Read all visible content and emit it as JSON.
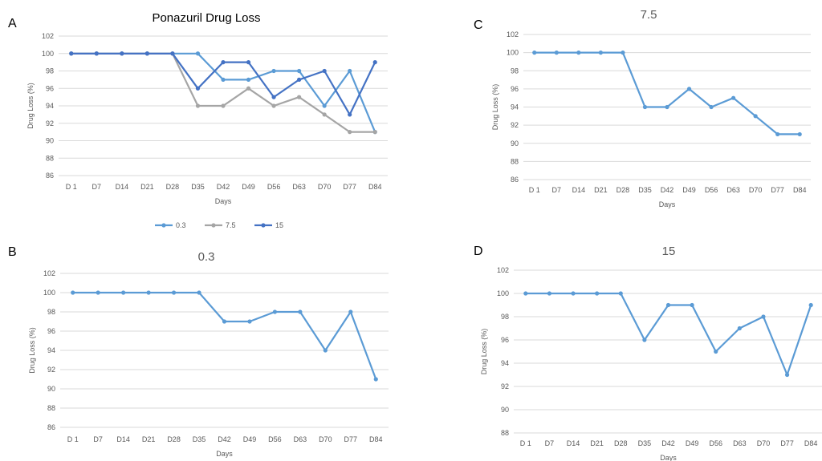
{
  "chart_data": [
    {
      "panel_letter": "A",
      "type": "line",
      "title": "Ponazuril Drug Loss",
      "xlabel": "Days",
      "ylabel": "Drug Loss (%)",
      "ylim": [
        86,
        102
      ],
      "ytick_step": 2,
      "grid": true,
      "legend": "bottom",
      "categories": [
        "D 1",
        "D7",
        "D14",
        "D21",
        "D28",
        "D35",
        "D42",
        "D49",
        "D56",
        "D63",
        "D70",
        "D77",
        "D84"
      ],
      "series": [
        {
          "name": "0.3",
          "color": "#5b9bd5",
          "values": [
            100,
            100,
            100,
            100,
            100,
            100,
            97,
            97,
            98,
            98,
            94,
            98,
            91
          ]
        },
        {
          "name": "7.5",
          "color": "#a5a5a5",
          "values": [
            100,
            100,
            100,
            100,
            100,
            94,
            94,
            96,
            94,
            95,
            93,
            91,
            91
          ]
        },
        {
          "name": "15",
          "color": "#4472c4",
          "values": [
            100,
            100,
            100,
            100,
            100,
            96,
            99,
            99,
            95,
            97,
            98,
            93,
            99
          ]
        }
      ]
    },
    {
      "panel_letter": "B",
      "type": "line",
      "title": "0.3",
      "xlabel": "Days",
      "ylabel": "Drug Loss (%)",
      "ylim": [
        86,
        102
      ],
      "ytick_step": 2,
      "grid": true,
      "legend": "none",
      "categories": [
        "D 1",
        "D7",
        "D14",
        "D21",
        "D28",
        "D35",
        "D42",
        "D49",
        "D56",
        "D63",
        "D70",
        "D77",
        "D84"
      ],
      "series": [
        {
          "color": "#5b9bd5",
          "values": [
            100,
            100,
            100,
            100,
            100,
            100,
            97,
            97,
            98,
            98,
            94,
            98,
            91
          ]
        }
      ]
    },
    {
      "panel_letter": "C",
      "type": "line",
      "title": "7.5",
      "xlabel": "Days",
      "ylabel": "Drug Loss (%)",
      "ylim": [
        86,
        102
      ],
      "ytick_step": 2,
      "grid": true,
      "legend": "none",
      "categories": [
        "D 1",
        "D7",
        "D14",
        "D21",
        "D28",
        "D35",
        "D42",
        "D49",
        "D56",
        "D63",
        "D70",
        "D77",
        "D84"
      ],
      "series": [
        {
          "color": "#5b9bd5",
          "values": [
            100,
            100,
            100,
            100,
            100,
            94,
            94,
            96,
            94,
            95,
            93,
            91,
            91
          ]
        }
      ]
    },
    {
      "panel_letter": "D",
      "type": "line",
      "title": "15",
      "xlabel": "Days",
      "ylabel": "Drug Loss (%)",
      "ylim": [
        88,
        102
      ],
      "ytick_step": 2,
      "grid": true,
      "legend": "none",
      "categories": [
        "D 1",
        "D7",
        "D14",
        "D21",
        "D28",
        "D35",
        "D42",
        "D49",
        "D56",
        "D63",
        "D70",
        "D77",
        "D84"
      ],
      "series": [
        {
          "color": "#5b9bd5",
          "values": [
            100,
            100,
            100,
            100,
            100,
            96,
            99,
            99,
            95,
            97,
            98,
            93,
            99
          ]
        }
      ]
    }
  ]
}
